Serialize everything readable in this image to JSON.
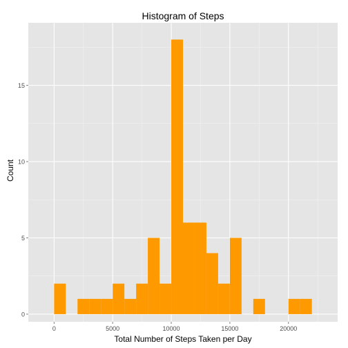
{
  "chart_data": {
    "type": "bar",
    "title": "Histogram of Steps",
    "xlabel": "Total Number of Steps Taken per Day",
    "ylabel": "Count",
    "bin_width": 1000,
    "bins": [
      {
        "start": 0,
        "end": 1000,
        "count": 2
      },
      {
        "start": 2000,
        "end": 3000,
        "count": 1
      },
      {
        "start": 3000,
        "end": 4000,
        "count": 1
      },
      {
        "start": 4000,
        "end": 5000,
        "count": 1
      },
      {
        "start": 5000,
        "end": 6000,
        "count": 2
      },
      {
        "start": 6000,
        "end": 7000,
        "count": 1
      },
      {
        "start": 7000,
        "end": 8000,
        "count": 2
      },
      {
        "start": 8000,
        "end": 9000,
        "count": 5
      },
      {
        "start": 9000,
        "end": 10000,
        "count": 2
      },
      {
        "start": 10000,
        "end": 11000,
        "count": 18
      },
      {
        "start": 11000,
        "end": 12000,
        "count": 6
      },
      {
        "start": 12000,
        "end": 13000,
        "count": 6
      },
      {
        "start": 13000,
        "end": 14000,
        "count": 4
      },
      {
        "start": 14000,
        "end": 15000,
        "count": 2
      },
      {
        "start": 15000,
        "end": 16000,
        "count": 5
      },
      {
        "start": 17000,
        "end": 18000,
        "count": 1
      },
      {
        "start": 20000,
        "end": 21000,
        "count": 1
      },
      {
        "start": 21000,
        "end": 22000,
        "count": 1
      }
    ],
    "xlim": [
      -2200,
      24200
    ],
    "ylim": [
      -0.5,
      19.1
    ],
    "x_ticks": [
      0,
      5000,
      10000,
      15000,
      20000
    ],
    "x_tick_labels": [
      "0",
      "5000",
      "10000",
      "15000",
      "20000"
    ],
    "y_ticks": [
      0,
      5,
      10,
      15
    ],
    "y_tick_labels": [
      "0",
      "5",
      "10",
      "15"
    ],
    "grid": true,
    "colors": {
      "bar": "#ff9900",
      "panel_background": "#e5e5e5",
      "grid_major": "#ffffff",
      "grid_minor": "#f2f2f2",
      "tick_label": "#4d4d4d",
      "text": "#000000"
    }
  }
}
